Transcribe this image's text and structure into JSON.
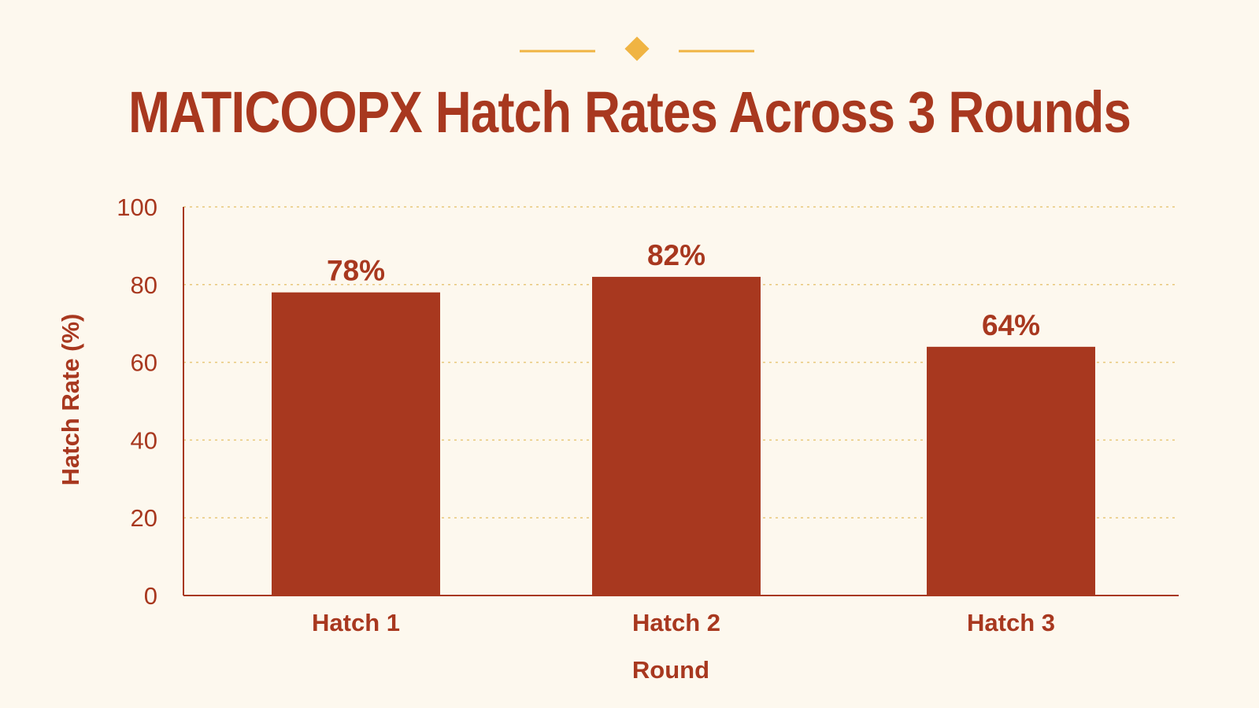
{
  "colors": {
    "background": "#fdf8ee",
    "bar": "#a8381f",
    "text": "#a8381f",
    "axis": "#a8381f",
    "grid": "#e8c77a",
    "ornament": "#f0b443"
  },
  "chart_data": {
    "type": "bar",
    "title": "MATICOOPX Hatch Rates Across 3 Rounds",
    "xlabel": "Round",
    "ylabel": "Hatch Rate (%)",
    "categories": [
      "Hatch 1",
      "Hatch 2",
      "Hatch 3"
    ],
    "values": [
      78,
      82,
      64
    ],
    "data_labels": [
      "78%",
      "82%",
      "64%"
    ],
    "ylim": [
      0,
      100
    ],
    "yticks": [
      0,
      20,
      40,
      60,
      80,
      100
    ],
    "grid": true,
    "legend": "none"
  }
}
